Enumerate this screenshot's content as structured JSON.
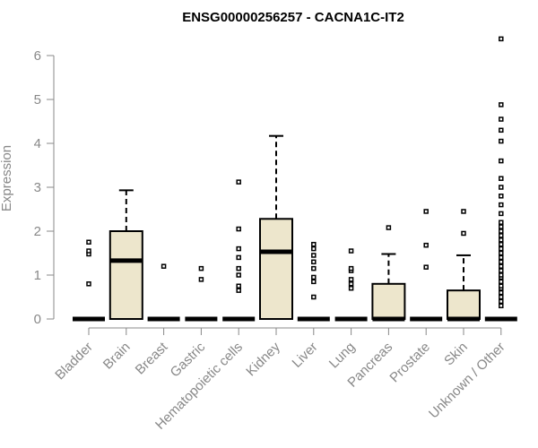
{
  "chart_data": {
    "type": "boxplot",
    "title": "ENSG00000256257 - CACNA1C-IT2",
    "xlabel": "",
    "ylabel": "Expression",
    "ylim": [
      0,
      6.4
    ],
    "yticks": [
      0,
      1,
      2,
      3,
      4,
      5,
      6
    ],
    "grid": false,
    "colors": {
      "box_fill": "#ede6cc",
      "stroke": "#000000",
      "axis": "#888888"
    },
    "categories": [
      "Bladder",
      "Brain",
      "Breast",
      "Gastric",
      "Hematopoietic cells",
      "Kidney",
      "Liver",
      "Lung",
      "Pancreas",
      "Prostate",
      "Skin",
      "Unknown / Other"
    ],
    "boxes": [
      {
        "category": "Bladder",
        "min": 0,
        "q1": 0,
        "median": 0,
        "q3": 0,
        "max": 0,
        "outliers": [
          0.8,
          1.48,
          1.55,
          1.75
        ]
      },
      {
        "category": "Brain",
        "min": 0,
        "q1": 0,
        "median": 1.33,
        "q3": 2.0,
        "max": 2.93,
        "outliers": []
      },
      {
        "category": "Breast",
        "min": 0,
        "q1": 0,
        "median": 0,
        "q3": 0,
        "max": 0,
        "outliers": [
          1.2
        ]
      },
      {
        "category": "Gastric",
        "min": 0,
        "q1": 0,
        "median": 0,
        "q3": 0,
        "max": 0,
        "outliers": [
          0.9,
          1.15
        ]
      },
      {
        "category": "Hematopoietic cells",
        "min": 0,
        "q1": 0,
        "median": 0,
        "q3": 0,
        "max": 0,
        "outliers": [
          0.65,
          0.75,
          1.0,
          1.15,
          1.4,
          1.6,
          2.05,
          3.12
        ]
      },
      {
        "category": "Kidney",
        "min": 0,
        "q1": 0,
        "median": 1.53,
        "q3": 2.28,
        "max": 4.17,
        "outliers": []
      },
      {
        "category": "Liver",
        "min": 0,
        "q1": 0,
        "median": 0,
        "q3": 0,
        "max": 0,
        "outliers": [
          0.5,
          0.85,
          0.95,
          1.15,
          1.3,
          1.45,
          1.6,
          1.7
        ]
      },
      {
        "category": "Lung",
        "min": 0,
        "q1": 0,
        "median": 0,
        "q3": 0,
        "max": 0,
        "outliers": [
          0.7,
          0.8,
          0.9,
          1.1,
          1.15,
          1.55
        ]
      },
      {
        "category": "Pancreas",
        "min": 0,
        "q1": 0,
        "median": 0,
        "q3": 0.8,
        "max": 1.48,
        "outliers": [
          2.08
        ]
      },
      {
        "category": "Prostate",
        "min": 0,
        "q1": 0,
        "median": 0,
        "q3": 0,
        "max": 0,
        "outliers": [
          1.18,
          1.68,
          2.45
        ]
      },
      {
        "category": "Skin",
        "min": 0,
        "q1": 0,
        "median": 0,
        "q3": 0.65,
        "max": 1.45,
        "outliers": [
          1.95,
          2.45
        ]
      },
      {
        "category": "Unknown / Other",
        "min": 0,
        "q1": 0,
        "median": 0,
        "q3": 0,
        "max": 0,
        "outliers": [
          0.3,
          0.4,
          0.5,
          0.6,
          0.7,
          0.75,
          0.85,
          0.95,
          1.0,
          1.1,
          1.2,
          1.3,
          1.4,
          1.5,
          1.6,
          1.7,
          1.8,
          1.9,
          2.0,
          2.1,
          2.2,
          2.4,
          2.6,
          2.8,
          3.0,
          3.2,
          3.6,
          4.05,
          4.3,
          4.55,
          4.88,
          6.38
        ]
      }
    ]
  }
}
